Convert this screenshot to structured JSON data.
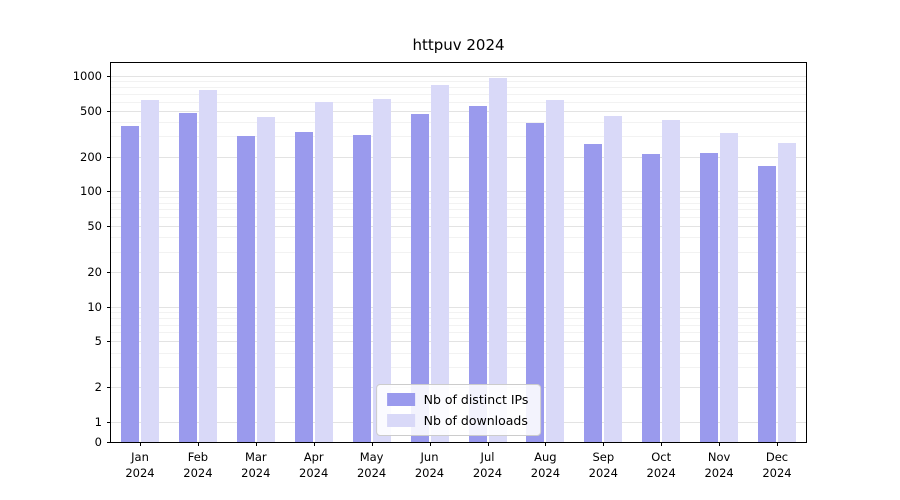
{
  "chart_data": {
    "type": "bar",
    "title": "httpuv 2024",
    "categories": [
      "Jan",
      "Feb",
      "Mar",
      "Apr",
      "May",
      "Jun",
      "Jul",
      "Aug",
      "Sep",
      "Oct",
      "Nov",
      "Dec"
    ],
    "xtick_year": "2024",
    "series": [
      {
        "name": "Nb of distinct IPs",
        "color": "#9a9aed",
        "values": [
          370,
          480,
          300,
          330,
          310,
          470,
          550,
          390,
          260,
          210,
          215,
          165
        ]
      },
      {
        "name": "Nb of downloads",
        "color": "#d9d9f8",
        "values": [
          620,
          750,
          440,
          590,
          630,
          840,
          960,
          620,
          450,
          420,
          320,
          265
        ]
      }
    ],
    "yticks": [
      1000,
      500,
      200,
      100,
      50,
      20,
      10,
      5,
      2,
      1,
      0
    ],
    "y_scale": "symlog",
    "ylim": [
      0,
      1100
    ],
    "grid": true,
    "legend_position": "lower center"
  }
}
